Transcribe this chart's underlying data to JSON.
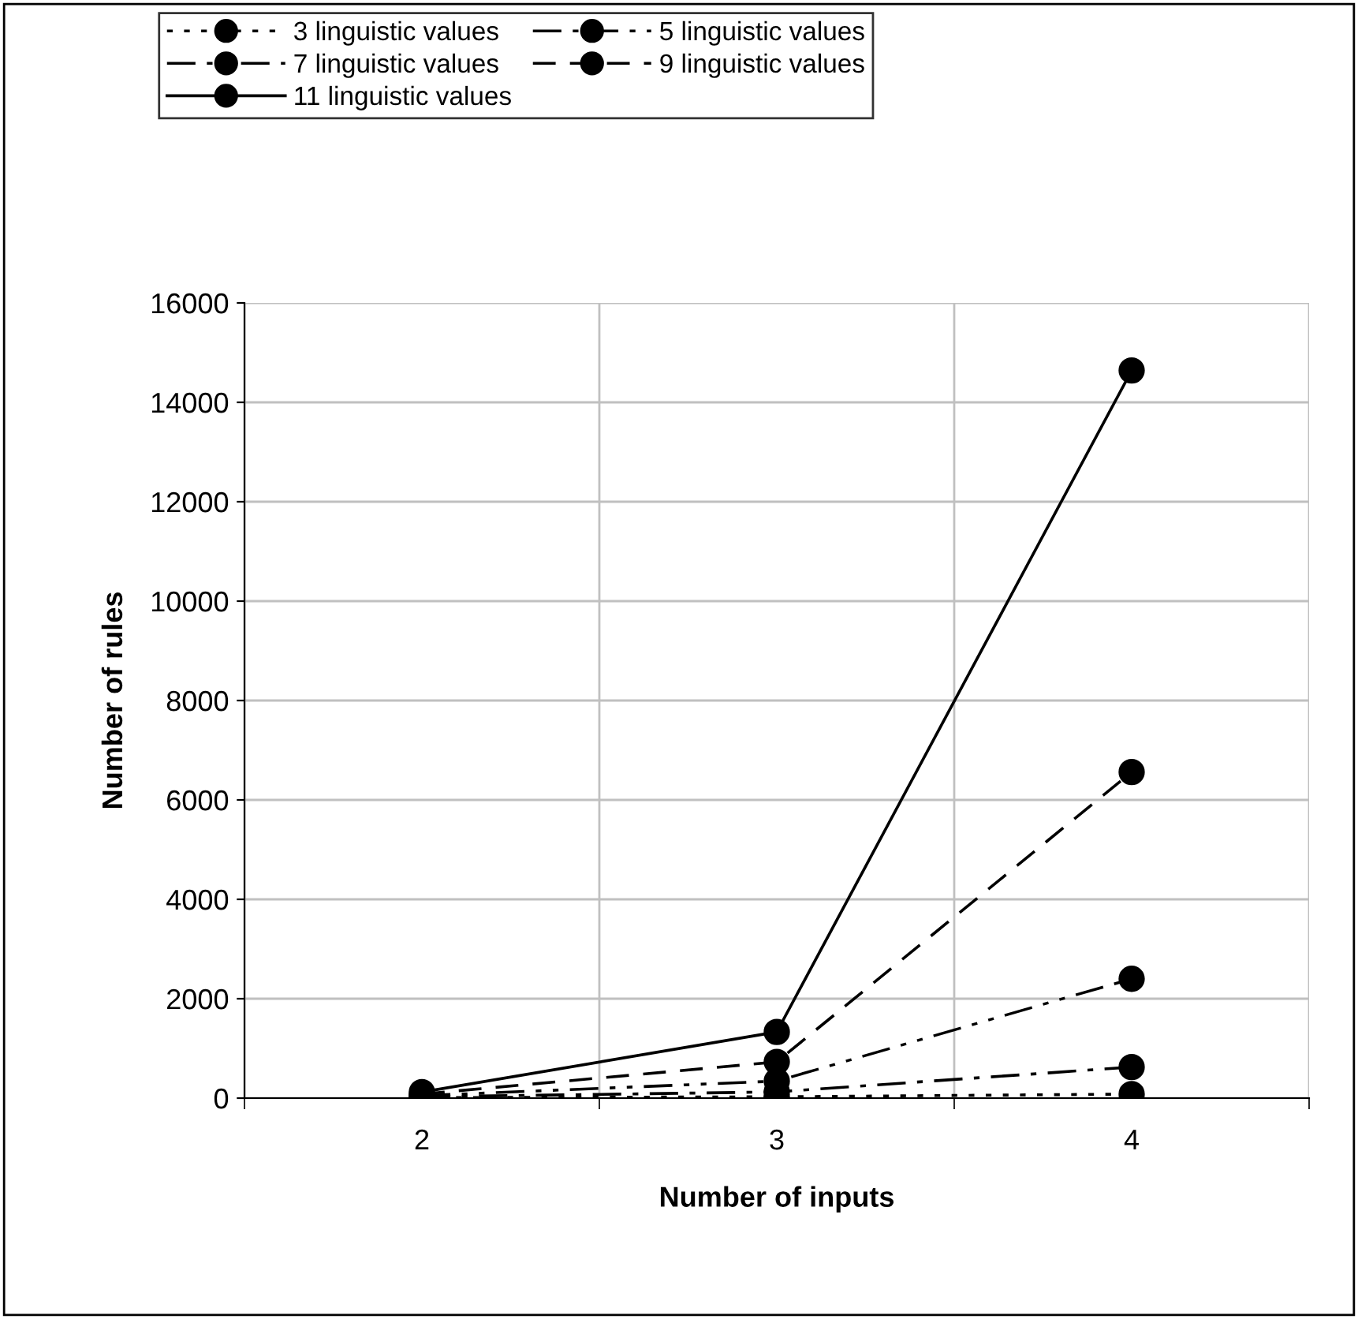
{
  "chart_data": {
    "type": "line",
    "xlabel": "Number of inputs",
    "ylabel": "Number of rules",
    "categories": [
      "2",
      "3",
      "4"
    ],
    "series": [
      {
        "name": "3 linguistic values",
        "color": "#000000",
        "line_style": "dotted",
        "values": [
          9,
          27,
          81
        ]
      },
      {
        "name": "5 linguistic values",
        "color": "#000000",
        "line_style": "dashed",
        "values": [
          25,
          125,
          625
        ]
      },
      {
        "name": "7 linguistic values",
        "color": "#000000",
        "line_style": "dashed",
        "values": [
          49,
          343,
          2401
        ]
      },
      {
        "name": "9 linguistic values",
        "color": "#000000",
        "line_style": "dashed",
        "values": [
          81,
          729,
          6561
        ]
      },
      {
        "name": "11 linguistic values",
        "color": "#000000",
        "line_style": "solid",
        "values": [
          121,
          1331,
          14641
        ]
      }
    ],
    "ylim": [
      0,
      16000
    ],
    "yticks": [
      0,
      2000,
      4000,
      6000,
      8000,
      10000,
      12000,
      14000,
      16000
    ],
    "grid": true,
    "legend": "top",
    "marker": "circle"
  }
}
